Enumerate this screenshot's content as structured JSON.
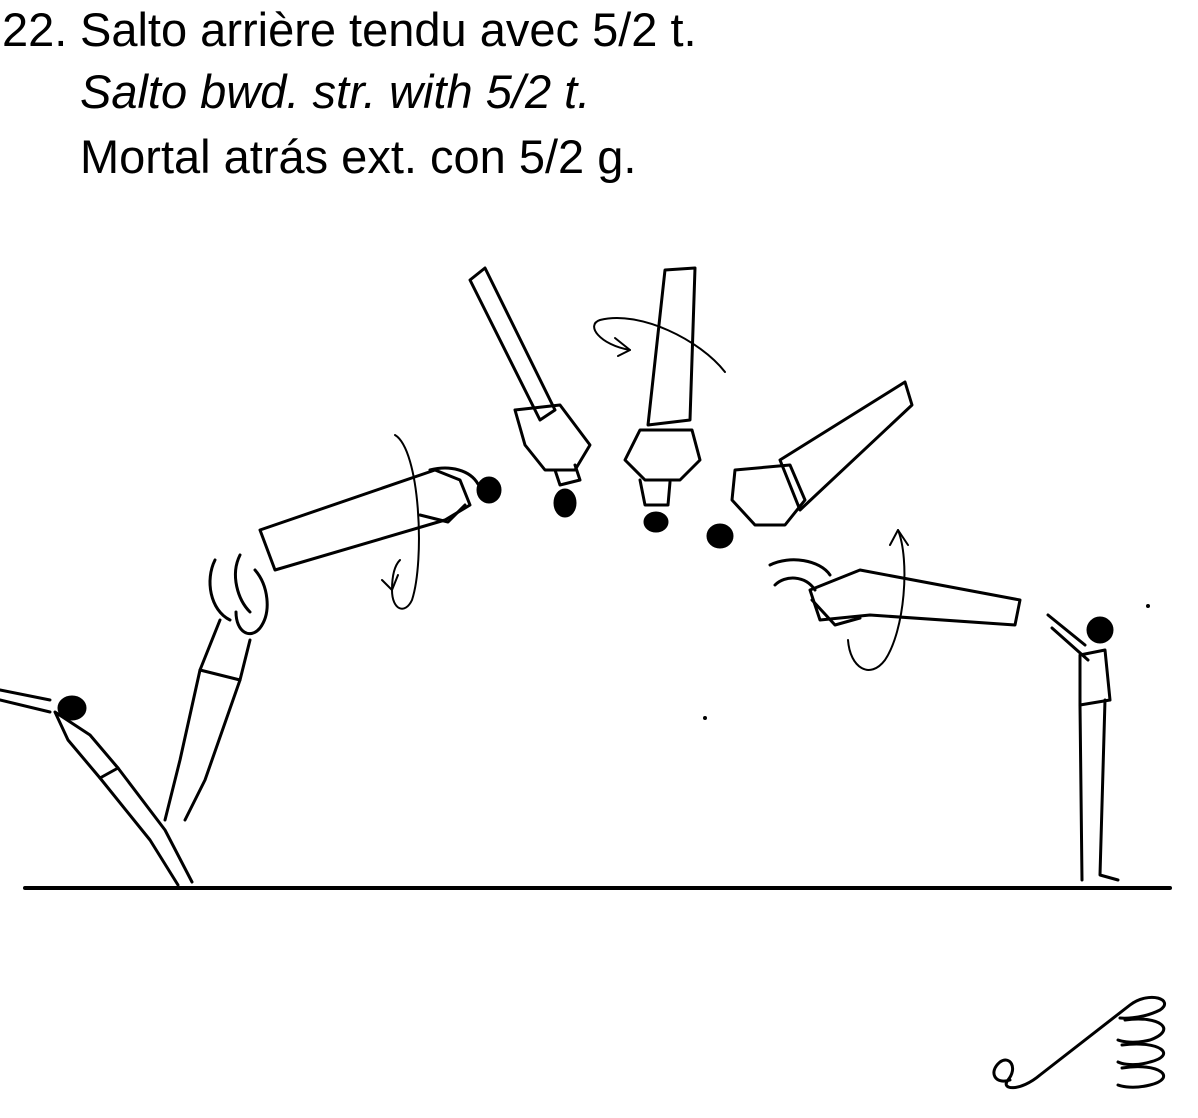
{
  "element": {
    "number": "22.",
    "title_fr": "Salto arrière tendu avec 5/2 t.",
    "title_en": "Salto bwd. str. with 5/2 t.",
    "title_es": "Mortal atrás ext. con 5/2 g."
  },
  "icons": [
    "gymnast-sequence-drawing",
    "twist-arrow-icon",
    "floor-apparatus-symbol-icon"
  ]
}
